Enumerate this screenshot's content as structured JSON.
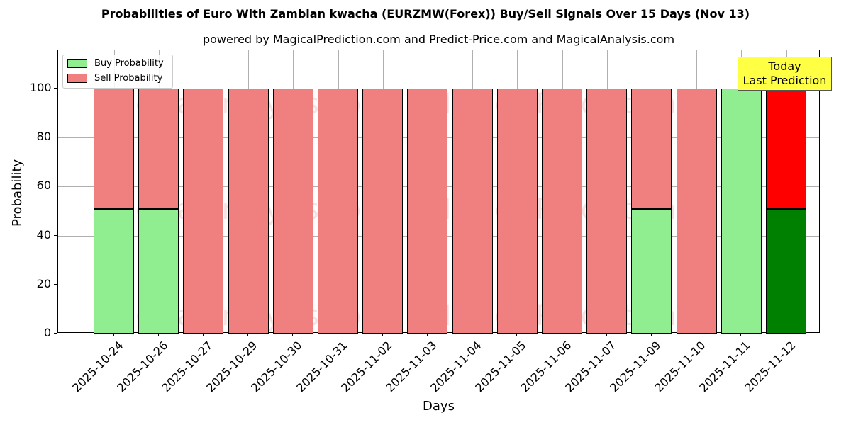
{
  "chart_data": {
    "type": "bar",
    "stacked": true,
    "title": "Probabilities of Euro With Zambian kwacha (EURZMW(Forex)) Buy/Sell Signals Over 15 Days (Nov 13)",
    "subtitle": "powered by MagicalPrediction.com and Predict-Price.com and MagicalAnalysis.com",
    "xlabel": "Days",
    "ylabel": "Probability",
    "ylim": [
      0,
      115
    ],
    "yticks": [
      0,
      20,
      40,
      60,
      80,
      100
    ],
    "grid": true,
    "legend_position": "upper left",
    "categories": [
      "2025-10-24",
      "2025-10-26",
      "2025-10-27",
      "2025-10-29",
      "2025-10-30",
      "2025-10-31",
      "2025-11-02",
      "2025-11-03",
      "2025-11-04",
      "2025-11-05",
      "2025-11-06",
      "2025-11-07",
      "2025-11-09",
      "2025-11-10",
      "2025-11-11",
      "2025-11-12"
    ],
    "series": [
      {
        "name": "Buy Probability",
        "color": "#90ee90",
        "values": [
          51,
          51,
          0,
          0,
          0,
          0,
          0,
          0,
          0,
          0,
          0,
          0,
          51,
          0,
          100,
          51
        ]
      },
      {
        "name": "Sell Probability",
        "color": "#f08080",
        "values": [
          49,
          49,
          100,
          100,
          100,
          100,
          100,
          100,
          100,
          100,
          100,
          100,
          49,
          100,
          0,
          49
        ]
      }
    ],
    "highlight": {
      "index": 15,
      "buy_color": "#008000",
      "sell_color": "#ff0000"
    },
    "reference_line": {
      "y": 110,
      "style": "dashed"
    },
    "annotation": {
      "line1": "Today",
      "line2": "Last Prediction",
      "background": "#ffff44"
    },
    "watermarks": [
      "MagicalAnalysis.com",
      "MagicalPrediction.com"
    ]
  }
}
